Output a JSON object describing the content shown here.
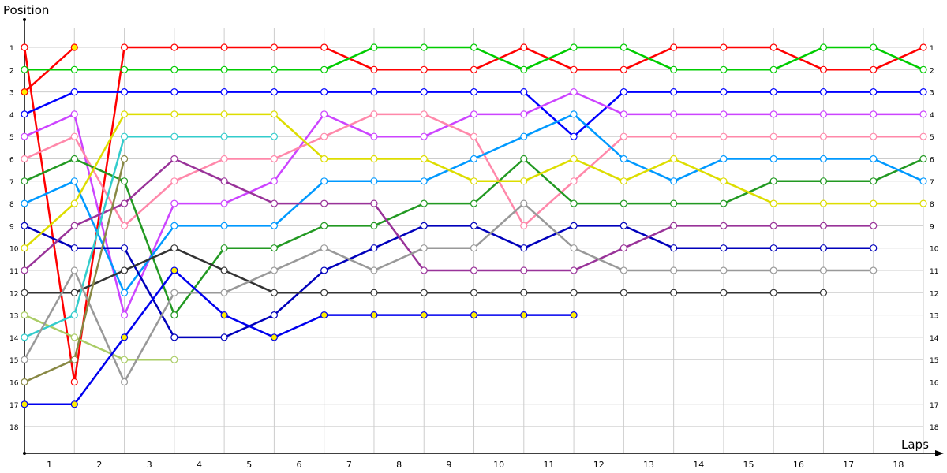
{
  "chart_data": {
    "type": "line",
    "title": "",
    "xlabel": "Laps",
    "ylabel": "Position",
    "x_tick_labels": [
      "1",
      "2",
      "3",
      "4",
      "5",
      "6",
      "7",
      "8",
      "9",
      "10",
      "11",
      "12",
      "13",
      "14",
      "15",
      "16",
      "17",
      "18"
    ],
    "y_tick_labels": [
      "1",
      "2",
      "3",
      "4",
      "5",
      "6",
      "7",
      "8",
      "9",
      "10",
      "11",
      "12",
      "13",
      "14",
      "15",
      "16",
      "17",
      "18"
    ],
    "ylim": [
      1,
      18
    ],
    "grid": true,
    "legend": "none",
    "points_per_series_note": "index 0 = start/grid, index 1..18 = end of each lap",
    "series": [
      {
        "name": "red-a",
        "color": "#ff0000",
        "positions": [
          1,
          16,
          1,
          1,
          1,
          1,
          1,
          2,
          2,
          2,
          1,
          2,
          2,
          1,
          1,
          1,
          2,
          2,
          1
        ]
      },
      {
        "name": "red-b",
        "color": "#ff0000",
        "marker_fill": "#ffee00",
        "positions": [
          3,
          1
        ]
      },
      {
        "name": "green",
        "color": "#00cc00",
        "positions": [
          2,
          2,
          2,
          2,
          2,
          2,
          2,
          1,
          1,
          1,
          2,
          1,
          1,
          2,
          2,
          2,
          1,
          1,
          2
        ]
      },
      {
        "name": "blue",
        "color": "#0000ff",
        "positions": [
          4,
          3,
          3,
          3,
          3,
          3,
          3,
          3,
          3,
          3,
          3,
          5,
          3,
          3,
          3,
          3,
          3,
          3,
          3
        ]
      },
      {
        "name": "magenta",
        "color": "#cc44ff",
        "positions": [
          5,
          4,
          13,
          8,
          8,
          7,
          4,
          5,
          5,
          4,
          4,
          3,
          4,
          4,
          4,
          4,
          4,
          4,
          4
        ]
      },
      {
        "name": "pink",
        "color": "#ff88aa",
        "positions": [
          6,
          5,
          9,
          7,
          6,
          6,
          5,
          4,
          4,
          5,
          9,
          7,
          5,
          5,
          5,
          5,
          5,
          5,
          5
        ]
      },
      {
        "name": "dark-green",
        "color": "#229922",
        "positions": [
          7,
          6,
          7,
          13,
          10,
          10,
          9,
          9,
          8,
          8,
          6,
          8,
          8,
          8,
          8,
          7,
          7,
          7,
          6
        ]
      },
      {
        "name": "sky-blue",
        "color": "#0099ff",
        "positions": [
          8,
          7,
          12,
          9,
          9,
          9,
          7,
          7,
          7,
          6,
          5,
          4,
          6,
          7,
          6,
          6,
          6,
          6,
          7
        ]
      },
      {
        "name": "navy",
        "color": "#0000bb",
        "positions": [
          9,
          10,
          10,
          14,
          14,
          13,
          11,
          10,
          9,
          9,
          10,
          9,
          9,
          10,
          10,
          10,
          10,
          10
        ]
      },
      {
        "name": "yellow",
        "color": "#dddd00",
        "positions": [
          10,
          8,
          4,
          4,
          4,
          4,
          6,
          6,
          6,
          7,
          7,
          6,
          7,
          6,
          7,
          8,
          8,
          8,
          8
        ]
      },
      {
        "name": "violet",
        "color": "#993399",
        "positions": [
          11,
          9,
          8,
          6,
          7,
          8,
          8,
          8,
          11,
          11,
          11,
          11,
          10,
          9,
          9,
          9,
          9,
          9
        ]
      },
      {
        "name": "dark-gray",
        "color": "#333333",
        "positions": [
          12,
          12,
          11,
          10,
          11,
          12,
          12,
          12,
          12,
          12,
          12,
          12,
          12,
          12,
          12,
          12,
          12
        ]
      },
      {
        "name": "light-green",
        "color": "#aacc66",
        "positions": [
          13,
          14,
          15,
          15
        ]
      },
      {
        "name": "cyan",
        "color": "#33cccc",
        "positions": [
          14,
          13,
          5,
          5,
          5,
          5
        ]
      },
      {
        "name": "gray",
        "color": "#999999",
        "positions": [
          15,
          11,
          16,
          12,
          12,
          11,
          10,
          11,
          10,
          10,
          8,
          10,
          11,
          11,
          11,
          11,
          11,
          11
        ]
      },
      {
        "name": "olive",
        "color": "#888844",
        "positions": [
          16,
          15,
          6
        ]
      },
      {
        "name": "blue-yellow-dot",
        "color": "#0000ee",
        "marker_fill": "#ffee00",
        "positions": [
          17,
          17,
          14,
          11,
          13,
          14,
          13,
          13,
          13,
          13,
          13,
          13
        ]
      }
    ]
  },
  "labels": {
    "y_axis_title": "Position",
    "x_axis_title": "Laps"
  }
}
